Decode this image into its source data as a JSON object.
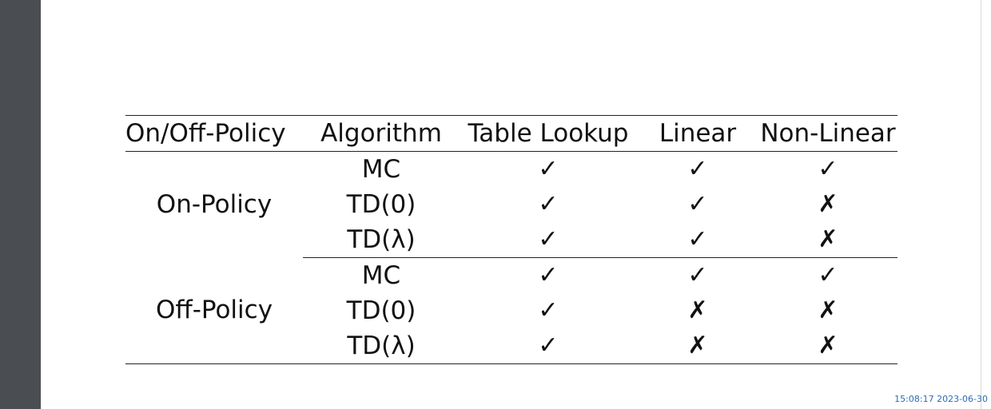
{
  "table": {
    "headers": [
      "On/Off-Policy",
      "Algorithm",
      "Table Lookup",
      "Linear",
      "Non-Linear"
    ],
    "groups": [
      {
        "policy": "On-Policy",
        "rows": [
          {
            "algorithm": "MC",
            "table_lookup": "✓",
            "linear": "✓",
            "non_linear": "✓"
          },
          {
            "algorithm": "TD(0)",
            "table_lookup": "✓",
            "linear": "✓",
            "non_linear": "✗"
          },
          {
            "algorithm": "TD(λ)",
            "table_lookup": "✓",
            "linear": "✓",
            "non_linear": "✗"
          }
        ]
      },
      {
        "policy": "Off-Policy",
        "rows": [
          {
            "algorithm": "MC",
            "table_lookup": "✓",
            "linear": "✓",
            "non_linear": "✓"
          },
          {
            "algorithm": "TD(0)",
            "table_lookup": "✓",
            "linear": "✗",
            "non_linear": "✗"
          },
          {
            "algorithm": "TD(λ)",
            "table_lookup": "✓",
            "linear": "✗",
            "non_linear": "✗"
          }
        ]
      }
    ]
  },
  "timestamp": "15:08:17 2023-06-30",
  "colors": {
    "viewer_background": "#4a4e52",
    "page_background": "#ffffff",
    "timestamp_text": "#2a6db5"
  }
}
